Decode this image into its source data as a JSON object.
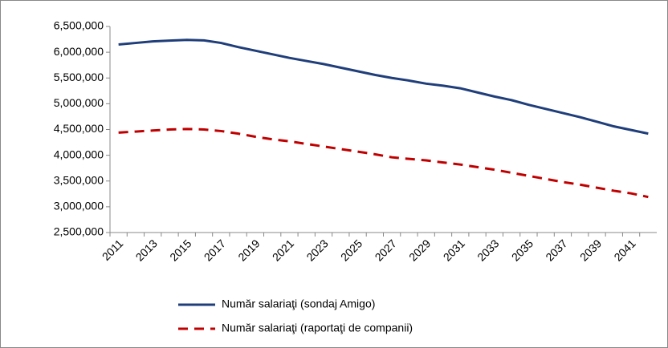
{
  "chart_data": {
    "type": "line",
    "categories": [
      "2011",
      null,
      "2013",
      null,
      "2015",
      null,
      "2017",
      null,
      "2019",
      null,
      "2021",
      null,
      "2023",
      null,
      "2025",
      null,
      "2027",
      null,
      "2029",
      null,
      "2031",
      null,
      "2033",
      null,
      "2035",
      null,
      "2037",
      null,
      "2039",
      null,
      "2041",
      null
    ],
    "series": [
      {
        "name": "Număr salariaţi (sondaj Amigo)",
        "color": "#1f3e7a",
        "dash": "solid",
        "values": [
          6150000,
          6180000,
          6210000,
          6225000,
          6240000,
          6230000,
          6180000,
          6100000,
          6030000,
          5960000,
          5890000,
          5830000,
          5770000,
          5700000,
          5630000,
          5560000,
          5500000,
          5450000,
          5390000,
          5350000,
          5300000,
          5220000,
          5140000,
          5070000,
          4980000,
          4900000,
          4820000,
          4740000,
          4650000,
          4560000,
          4490000,
          4420000
        ]
      },
      {
        "name": "Număr salariaţi (raportaţi de companii)",
        "color": "#c00000",
        "dash": "dashed",
        "values": [
          4440000,
          4460000,
          4480000,
          4500000,
          4510000,
          4500000,
          4470000,
          4420000,
          4360000,
          4310000,
          4270000,
          4220000,
          4170000,
          4120000,
          4070000,
          4020000,
          3960000,
          3930000,
          3900000,
          3860000,
          3820000,
          3770000,
          3720000,
          3660000,
          3600000,
          3540000,
          3480000,
          3430000,
          3370000,
          3310000,
          3260000,
          3190000
        ]
      }
    ],
    "ylim": [
      2500000,
      6500000
    ],
    "yticks": [
      {
        "value": 2500000,
        "label": "2,500,000"
      },
      {
        "value": 3000000,
        "label": "3,000,000"
      },
      {
        "value": 3500000,
        "label": "3,500,000"
      },
      {
        "value": 4000000,
        "label": "4,000,000"
      },
      {
        "value": 4500000,
        "label": "4,500,000"
      },
      {
        "value": 5000000,
        "label": "5,000,000"
      },
      {
        "value": 5500000,
        "label": "5,500,000"
      },
      {
        "value": 6000000,
        "label": "6,000,000"
      },
      {
        "value": 6500000,
        "label": "6,500,000"
      }
    ],
    "grid": false,
    "legend": "bottom"
  }
}
